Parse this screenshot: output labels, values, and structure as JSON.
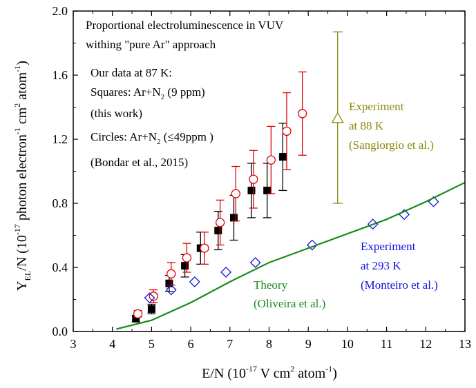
{
  "chart_data": {
    "type": "scatter",
    "xlabel": {
      "main": "E/N (10",
      "sup1": "-17",
      "mid": " V cm",
      "sup2": "2",
      "mid2": " atom",
      "sup3": "-1",
      "end": ")"
    },
    "ylabel": {
      "y": "Y",
      "sub": "EL",
      "after": "/N (10",
      "sup1": "-17",
      "mid": " photon electron",
      "sup2": "-1",
      "mid2": " cm",
      "sup3": "2",
      "mid3": " atom",
      "sup4": "-1",
      "end": ")"
    },
    "xlim": [
      3,
      13
    ],
    "ylim": [
      0,
      2.0
    ],
    "x_ticks": [
      3,
      4,
      5,
      6,
      7,
      8,
      9,
      10,
      11,
      12,
      13
    ],
    "y_ticks": [
      0.0,
      0.4,
      0.8,
      1.2,
      1.6,
      2.0
    ],
    "y_tick_labels": [
      "0.0",
      "0.4",
      "0.8",
      "1.2",
      "1.6",
      "2.0"
    ],
    "grid": false,
    "colors": {
      "squares": "#000000",
      "circles": "#dd0000",
      "theory": "#1a8a1a",
      "monteiro": "#1010e0",
      "sangiorgio": "#8a8a10",
      "axis": "#000000"
    },
    "series": [
      {
        "marker": "filled-square",
        "color": "#000000",
        "points": [
          {
            "x": 4.6,
            "y": 0.08,
            "err": 0.02
          },
          {
            "x": 5.0,
            "y": 0.14,
            "err": 0.03
          },
          {
            "x": 5.45,
            "y": 0.3,
            "err": 0.05
          },
          {
            "x": 5.85,
            "y": 0.41,
            "err": 0.07
          },
          {
            "x": 6.25,
            "y": 0.52,
            "err": 0.1
          },
          {
            "x": 6.7,
            "y": 0.63,
            "err": 0.12
          },
          {
            "x": 7.1,
            "y": 0.71,
            "err": 0.14
          },
          {
            "x": 7.55,
            "y": 0.88,
            "err": 0.17
          },
          {
            "x": 7.95,
            "y": 0.88,
            "err": 0.17
          },
          {
            "x": 8.35,
            "y": 1.09,
            "err": 0.21
          }
        ]
      },
      {
        "marker": "open-circle",
        "color": "#dd0000",
        "points": [
          {
            "x": 4.65,
            "y": 0.11,
            "err": 0.02
          },
          {
            "x": 5.05,
            "y": 0.22,
            "err": 0.04
          },
          {
            "x": 5.5,
            "y": 0.36,
            "err": 0.07
          },
          {
            "x": 5.9,
            "y": 0.46,
            "err": 0.09
          },
          {
            "x": 6.35,
            "y": 0.52,
            "err": 0.1
          },
          {
            "x": 6.75,
            "y": 0.68,
            "err": 0.14
          },
          {
            "x": 7.15,
            "y": 0.86,
            "err": 0.17
          },
          {
            "x": 7.6,
            "y": 0.95,
            "err": 0.18
          },
          {
            "x": 8.05,
            "y": 1.07,
            "err": 0.21
          },
          {
            "x": 8.45,
            "y": 1.25,
            "err": 0.24
          },
          {
            "x": 8.85,
            "y": 1.36,
            "err": 0.26
          }
        ]
      },
      {
        "marker": "open-diamond",
        "color": "#1010e0",
        "points": [
          {
            "x": 4.95,
            "y": 0.21
          },
          {
            "x": 5.5,
            "y": 0.26
          },
          {
            "x": 6.1,
            "y": 0.31
          },
          {
            "x": 6.9,
            "y": 0.37
          },
          {
            "x": 7.65,
            "y": 0.43
          },
          {
            "x": 9.1,
            "y": 0.54
          },
          {
            "x": 10.65,
            "y": 0.67
          },
          {
            "x": 11.45,
            "y": 0.73
          },
          {
            "x": 12.2,
            "y": 0.81
          }
        ]
      },
      {
        "marker": "line",
        "color": "#1a8a1a",
        "points": [
          {
            "x": 4.1,
            "y": 0.015
          },
          {
            "x": 5.0,
            "y": 0.07
          },
          {
            "x": 6.0,
            "y": 0.18
          },
          {
            "x": 7.0,
            "y": 0.31
          },
          {
            "x": 8.0,
            "y": 0.43
          },
          {
            "x": 9.0,
            "y": 0.52
          },
          {
            "x": 10.0,
            "y": 0.61
          },
          {
            "x": 11.0,
            "y": 0.7
          },
          {
            "x": 12.0,
            "y": 0.81
          },
          {
            "x": 13.0,
            "y": 0.93
          }
        ]
      },
      {
        "marker": "open-triangle",
        "color": "#8a8a10",
        "points": [
          {
            "x": 9.75,
            "y": 1.33,
            "err_low": 0.53,
            "err_high": 0.54
          }
        ]
      }
    ],
    "annotations": {
      "line1": "Proportional electroluminescence in VUV",
      "line2": "withing \"pure Ar\" approach",
      "our_data": "Our data at 87 K:",
      "squares_a": "Squares: Ar+N",
      "squares_sub": "2",
      "squares_b": " (9 ppm)",
      "this_work": "(this work)",
      "circles_a": "Circles: Ar+N",
      "circles_sub": "2",
      "circles_b": " (≤49ppm )",
      "bondar": "(Bondar et al., 2015)",
      "exp88_1": "Experiment",
      "exp88_2": "at 88 K",
      "exp88_3": "(Sangiorgio et al.)",
      "exp293_1": "Experiment",
      "exp293_2": "at 293 K",
      "exp293_3": "(Monteiro et al.)",
      "theory_1": "Theory",
      "theory_2": "(Oliveira et al.)"
    }
  }
}
